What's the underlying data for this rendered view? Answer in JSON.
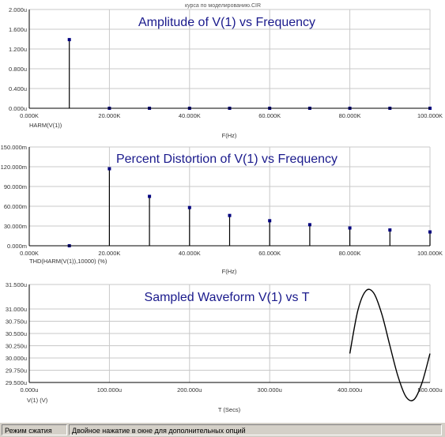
{
  "window_title": "курса по моделированию.CIR",
  "charts": [
    {
      "title": "Amplitude of V(1) vs Frequency",
      "trace_label": "HARM(V(1))",
      "xlabel": "F(Hz)",
      "x_ticks": [
        "0.000K",
        "20.000K",
        "40.000K",
        "60.000K",
        "80.000K",
        "100.000K"
      ],
      "y_ticks": [
        "0.000u",
        "0.400u",
        "0.800u",
        "1.200u",
        "1.600u",
        "2.000u"
      ]
    },
    {
      "title": "Percent Distortion of V(1) vs Frequency",
      "trace_label": "THD(HARM(V(1)),10000) (%)",
      "xlabel": "F(Hz)",
      "x_ticks": [
        "0.000K",
        "20.000K",
        "40.000K",
        "60.000K",
        "80.000K",
        "100.000K"
      ],
      "y_ticks": [
        "0.000m",
        "30.000m",
        "60.000m",
        "90.000m",
        "120.000m",
        "150.000m"
      ]
    },
    {
      "title": "Sampled Waveform  V(1) vs T",
      "trace_label": "V(1) (V)",
      "xlabel": "T (Secs)",
      "x_ticks": [
        "0.000u",
        "100.000u",
        "200.000u",
        "300.000u",
        "400.000u",
        "500.000u"
      ],
      "y_ticks": [
        "29.500u",
        "29.750u",
        "30.000u",
        "30.250u",
        "30.500u",
        "30.750u",
        "31.000u",
        "31.500u"
      ]
    }
  ],
  "chart_data": [
    {
      "type": "scatter",
      "title": "Amplitude of V(1) vs Frequency",
      "xlabel": "F(Hz)",
      "ylabel": "HARM(V(1))",
      "xlim": [
        0,
        100000
      ],
      "ylim": [
        0,
        2.0
      ],
      "x": [
        10000,
        20000,
        30000,
        40000,
        50000,
        60000,
        70000,
        80000,
        90000,
        100000
      ],
      "y": [
        1.39,
        0.0,
        0.0,
        0.0,
        0.0,
        0.0,
        0.0,
        0.0,
        0.0,
        0.0
      ],
      "stems": true,
      "grid": true
    },
    {
      "type": "scatter",
      "title": "Percent Distortion of V(1) vs Frequency",
      "xlabel": "F(Hz)",
      "ylabel": "THD(HARM(V(1)),10000) (%)",
      "xlim": [
        0,
        100000
      ],
      "ylim": [
        0,
        150
      ],
      "x": [
        10000,
        20000,
        30000,
        40000,
        50000,
        60000,
        70000,
        80000,
        90000,
        100000
      ],
      "y": [
        0,
        117,
        75,
        58,
        46,
        38,
        32,
        27,
        24,
        21
      ],
      "stems": true,
      "grid": true
    },
    {
      "type": "line",
      "title": "Sampled Waveform  V(1) vs T",
      "xlabel": "T (Secs)",
      "ylabel": "V(1) (V)",
      "xlim": [
        0,
        500
      ],
      "ylim": [
        29.5,
        31.5
      ],
      "x": [
        400,
        410,
        420,
        430,
        440,
        450,
        460,
        470,
        480,
        490,
        500
      ],
      "y": [
        30.09,
        30.97,
        31.37,
        31.32,
        30.89,
        30.25,
        29.63,
        29.21,
        29.15,
        29.49,
        30.09
      ],
      "grid": true
    }
  ],
  "status": {
    "mode": "Режим сжатия",
    "hint": "Двойное нажатие в окне для дополнительных опций"
  },
  "colors": {
    "title": "#1a1a8c",
    "grid": "#c8c8c8",
    "axis": "#000000",
    "marker": "#000080",
    "statusbar": "#d4d0c8"
  }
}
